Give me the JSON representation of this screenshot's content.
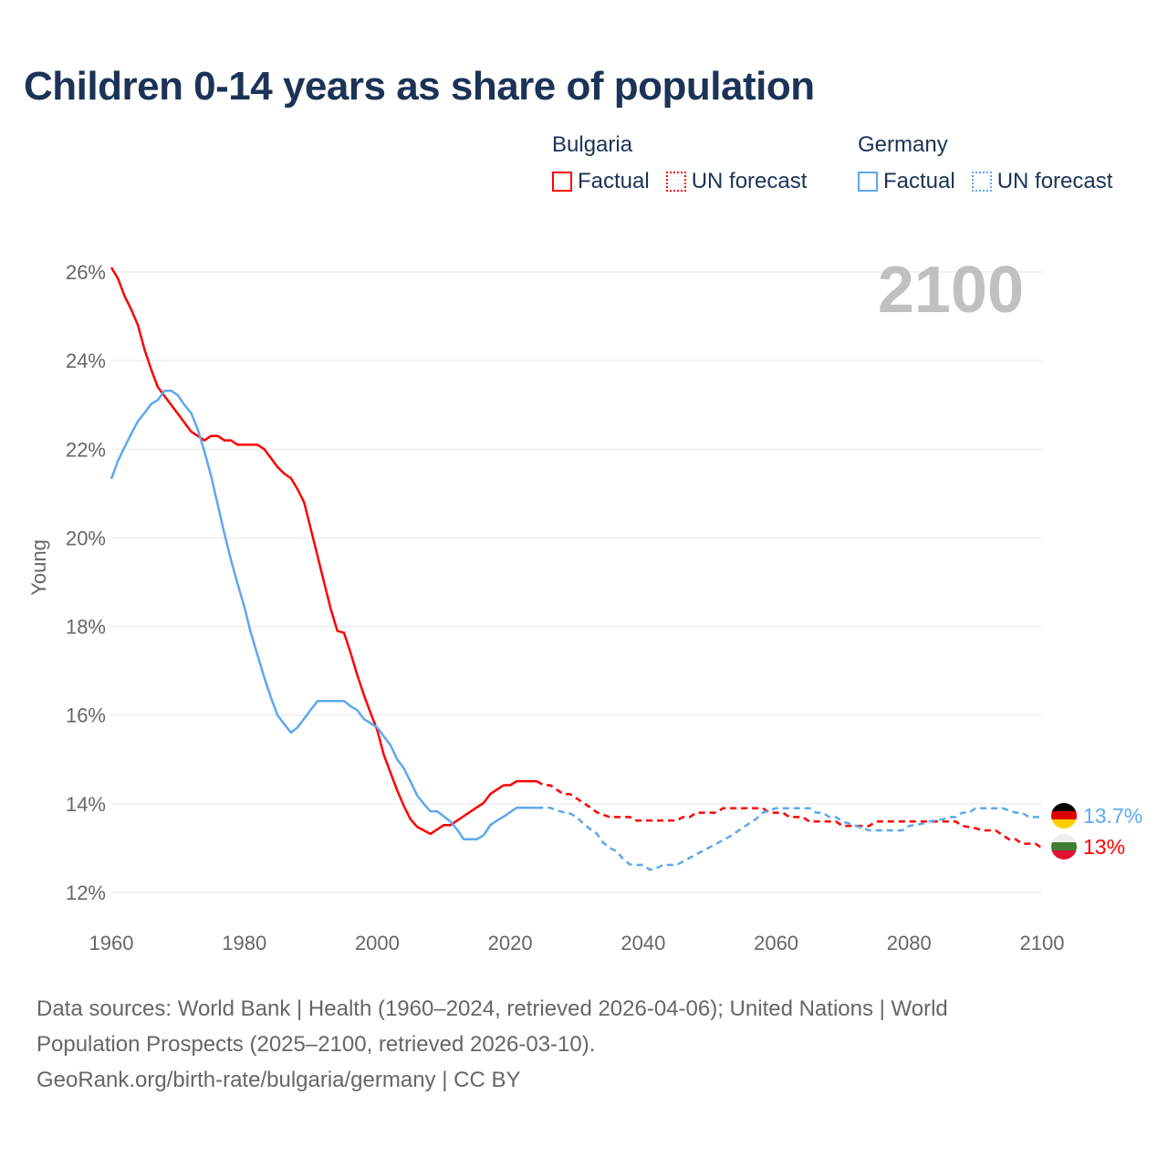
{
  "title": "Children 0-14 years as share of population",
  "legend": {
    "bulgaria": {
      "label": "Bulgaria",
      "factual": "Factual",
      "forecast": "UN forecast"
    },
    "germany": {
      "label": "Germany",
      "factual": "Factual",
      "forecast": "UN forecast"
    }
  },
  "colors": {
    "bulgaria": "#ff0000",
    "germany": "#5ea8ee",
    "title": "#1b3356",
    "year": "#c0c0c0"
  },
  "year_display": "2100",
  "end_labels": {
    "germany": "13.7%",
    "bulgaria": "13%"
  },
  "footer": {
    "line1": "Data sources: World Bank | Health (1960–2024, retrieved 2026-04-06); United Nations | World",
    "line2": "Population Prospects (2025–2100, retrieved 2026-03-10).",
    "line3": "GeoRank.org/birth-rate/bulgaria/germany | CC BY"
  },
  "chart_data": {
    "type": "line",
    "title": "Children 0-14 years as share of population",
    "xlabel": "",
    "ylabel": "Young",
    "xlim": [
      1960,
      2100
    ],
    "ylim": [
      12,
      26
    ],
    "xticks": [
      1960,
      1980,
      2000,
      2020,
      2040,
      2060,
      2080,
      2100
    ],
    "xtick_labels": [
      "1960",
      "1980",
      "2000",
      "2020",
      "2040",
      "2060",
      "2080",
      "2100"
    ],
    "yticks": [
      12,
      14,
      16,
      18,
      20,
      22,
      24,
      26
    ],
    "ytick_labels": [
      "12%",
      "14%",
      "16%",
      "18%",
      "20%",
      "22%",
      "24%",
      "26%"
    ],
    "grid": true,
    "series": [
      {
        "name": "Bulgaria Factual",
        "country": "bulgaria",
        "style": "solid",
        "points": [
          [
            1960,
            26.1
          ],
          [
            1961,
            25.85
          ],
          [
            1962,
            25.45
          ],
          [
            1963,
            25.15
          ],
          [
            1964,
            24.8
          ],
          [
            1965,
            24.25
          ],
          [
            1966,
            23.8
          ],
          [
            1967,
            23.4
          ],
          [
            1968,
            23.2
          ],
          [
            1969,
            23.0
          ],
          [
            1970,
            22.8
          ],
          [
            1971,
            22.6
          ],
          [
            1972,
            22.4
          ],
          [
            1973,
            22.3
          ],
          [
            1974,
            22.2
          ],
          [
            1975,
            22.3
          ],
          [
            1976,
            22.3
          ],
          [
            1977,
            22.2
          ],
          [
            1978,
            22.2
          ],
          [
            1979,
            22.1
          ],
          [
            1980,
            22.1
          ],
          [
            1981,
            22.1
          ],
          [
            1982,
            22.1
          ],
          [
            1983,
            22.0
          ],
          [
            1984,
            21.8
          ],
          [
            1985,
            21.6
          ],
          [
            1986,
            21.45
          ],
          [
            1987,
            21.35
          ],
          [
            1988,
            21.1
          ],
          [
            1989,
            20.8
          ],
          [
            1990,
            20.2
          ],
          [
            1991,
            19.6
          ],
          [
            1992,
            19.0
          ],
          [
            1993,
            18.4
          ],
          [
            1994,
            17.9
          ],
          [
            1995,
            17.86
          ],
          [
            1996,
            17.4
          ],
          [
            1997,
            16.9
          ],
          [
            1998,
            16.45
          ],
          [
            1999,
            16.05
          ],
          [
            2000,
            15.66
          ],
          [
            2001,
            15.1
          ],
          [
            2002,
            14.7
          ],
          [
            2003,
            14.3
          ],
          [
            2004,
            13.95
          ],
          [
            2005,
            13.65
          ],
          [
            2006,
            13.48
          ],
          [
            2007,
            13.4
          ],
          [
            2008,
            13.32
          ],
          [
            2009,
            13.42
          ],
          [
            2010,
            13.52
          ],
          [
            2011,
            13.52
          ],
          [
            2012,
            13.62
          ],
          [
            2013,
            13.72
          ],
          [
            2014,
            13.82
          ],
          [
            2015,
            13.92
          ],
          [
            2016,
            14.02
          ],
          [
            2017,
            14.22
          ],
          [
            2018,
            14.32
          ],
          [
            2019,
            14.42
          ],
          [
            2020,
            14.42
          ],
          [
            2021,
            14.51
          ],
          [
            2022,
            14.51
          ],
          [
            2023,
            14.51
          ],
          [
            2024,
            14.51
          ]
        ]
      },
      {
        "name": "Bulgaria UN forecast",
        "country": "bulgaria",
        "style": "dashed",
        "points": [
          [
            2024,
            14.51
          ],
          [
            2025,
            14.42
          ],
          [
            2026,
            14.42
          ],
          [
            2027,
            14.32
          ],
          [
            2028,
            14.22
          ],
          [
            2029,
            14.22
          ],
          [
            2030,
            14.12
          ],
          [
            2031,
            14.02
          ],
          [
            2032,
            13.92
          ],
          [
            2033,
            13.81
          ],
          [
            2034,
            13.75
          ],
          [
            2035,
            13.7
          ],
          [
            2036,
            13.7
          ],
          [
            2037,
            13.7
          ],
          [
            2038,
            13.7
          ],
          [
            2039,
            13.62
          ],
          [
            2040,
            13.62
          ],
          [
            2042,
            13.62
          ],
          [
            2044,
            13.62
          ],
          [
            2045,
            13.62
          ],
          [
            2046,
            13.7
          ],
          [
            2047,
            13.7
          ],
          [
            2048,
            13.8
          ],
          [
            2050,
            13.8
          ],
          [
            2051,
            13.8
          ],
          [
            2052,
            13.9
          ],
          [
            2054,
            13.9
          ],
          [
            2056,
            13.9
          ],
          [
            2058,
            13.9
          ],
          [
            2059,
            13.8
          ],
          [
            2061,
            13.8
          ],
          [
            2062,
            13.7
          ],
          [
            2064,
            13.7
          ],
          [
            2065,
            13.6
          ],
          [
            2067,
            13.6
          ],
          [
            2069,
            13.6
          ],
          [
            2070,
            13.5
          ],
          [
            2072,
            13.5
          ],
          [
            2074,
            13.5
          ],
          [
            2075,
            13.6
          ],
          [
            2078,
            13.6
          ],
          [
            2081,
            13.6
          ],
          [
            2084,
            13.6
          ],
          [
            2087,
            13.6
          ],
          [
            2088,
            13.5
          ],
          [
            2090,
            13.45
          ],
          [
            2091,
            13.4
          ],
          [
            2093,
            13.4
          ],
          [
            2094,
            13.3
          ],
          [
            2095,
            13.2
          ],
          [
            2096,
            13.2
          ],
          [
            2097,
            13.1
          ],
          [
            2099,
            13.1
          ],
          [
            2100,
            13.0
          ]
        ]
      },
      {
        "name": "Germany Factual",
        "country": "germany",
        "style": "solid",
        "points": [
          [
            1960,
            21.33
          ],
          [
            1961,
            21.74
          ],
          [
            1962,
            22.05
          ],
          [
            1963,
            22.35
          ],
          [
            1964,
            22.63
          ],
          [
            1965,
            22.82
          ],
          [
            1966,
            23.02
          ],
          [
            1967,
            23.11
          ],
          [
            1968,
            23.32
          ],
          [
            1969,
            23.32
          ],
          [
            1970,
            23.22
          ],
          [
            1971,
            23.0
          ],
          [
            1972,
            22.82
          ],
          [
            1973,
            22.45
          ],
          [
            1974,
            21.95
          ],
          [
            1975,
            21.4
          ],
          [
            1976,
            20.75
          ],
          [
            1977,
            20.1
          ],
          [
            1978,
            19.5
          ],
          [
            1979,
            18.96
          ],
          [
            1980,
            18.45
          ],
          [
            1981,
            17.85
          ],
          [
            1982,
            17.35
          ],
          [
            1983,
            16.85
          ],
          [
            1984,
            16.4
          ],
          [
            1985,
            16.0
          ],
          [
            1986,
            15.8
          ],
          [
            1987,
            15.61
          ],
          [
            1988,
            15.72
          ],
          [
            1989,
            15.92
          ],
          [
            1990,
            16.12
          ],
          [
            1991,
            16.32
          ],
          [
            1992,
            16.32
          ],
          [
            1993,
            16.32
          ],
          [
            1994,
            16.32
          ],
          [
            1995,
            16.32
          ],
          [
            1996,
            16.2
          ],
          [
            1997,
            16.11
          ],
          [
            1998,
            15.91
          ],
          [
            1999,
            15.82
          ],
          [
            2000,
            15.72
          ],
          [
            2001,
            15.52
          ],
          [
            2002,
            15.32
          ],
          [
            2003,
            15.0
          ],
          [
            2004,
            14.8
          ],
          [
            2005,
            14.5
          ],
          [
            2006,
            14.19
          ],
          [
            2007,
            14.0
          ],
          [
            2008,
            13.83
          ],
          [
            2009,
            13.83
          ],
          [
            2010,
            13.72
          ],
          [
            2011,
            13.6
          ],
          [
            2012,
            13.42
          ],
          [
            2013,
            13.2
          ],
          [
            2014,
            13.2
          ],
          [
            2015,
            13.2
          ],
          [
            2016,
            13.29
          ],
          [
            2017,
            13.52
          ],
          [
            2018,
            13.62
          ],
          [
            2019,
            13.71
          ],
          [
            2020,
            13.81
          ],
          [
            2021,
            13.91
          ],
          [
            2022,
            13.91
          ],
          [
            2023,
            13.91
          ],
          [
            2024,
            13.91
          ]
        ]
      },
      {
        "name": "Germany UN forecast",
        "country": "germany",
        "style": "dashed",
        "points": [
          [
            2024,
            13.91
          ],
          [
            2025,
            13.91
          ],
          [
            2026,
            13.91
          ],
          [
            2027,
            13.85
          ],
          [
            2028,
            13.81
          ],
          [
            2029,
            13.78
          ],
          [
            2030,
            13.7
          ],
          [
            2031,
            13.55
          ],
          [
            2032,
            13.43
          ],
          [
            2033,
            13.33
          ],
          [
            2034,
            13.12
          ],
          [
            2035,
            13.0
          ],
          [
            2036,
            12.93
          ],
          [
            2037,
            12.75
          ],
          [
            2038,
            12.63
          ],
          [
            2039,
            12.62
          ],
          [
            2040,
            12.62
          ],
          [
            2041,
            12.51
          ],
          [
            2042,
            12.55
          ],
          [
            2043,
            12.62
          ],
          [
            2044,
            12.62
          ],
          [
            2045,
            12.62
          ],
          [
            2046,
            12.7
          ],
          [
            2047,
            12.78
          ],
          [
            2048,
            12.86
          ],
          [
            2049,
            12.94
          ],
          [
            2050,
            13.02
          ],
          [
            2051,
            13.1
          ],
          [
            2052,
            13.18
          ],
          [
            2053,
            13.26
          ],
          [
            2054,
            13.36
          ],
          [
            2055,
            13.46
          ],
          [
            2056,
            13.56
          ],
          [
            2057,
            13.66
          ],
          [
            2058,
            13.8
          ],
          [
            2059,
            13.85
          ],
          [
            2060,
            13.9
          ],
          [
            2062,
            13.9
          ],
          [
            2064,
            13.9
          ],
          [
            2065,
            13.9
          ],
          [
            2066,
            13.8
          ],
          [
            2067,
            13.8
          ],
          [
            2068,
            13.7
          ],
          [
            2069,
            13.7
          ],
          [
            2070,
            13.6
          ],
          [
            2071,
            13.55
          ],
          [
            2072,
            13.5
          ],
          [
            2073,
            13.45
          ],
          [
            2074,
            13.4
          ],
          [
            2076,
            13.4
          ],
          [
            2078,
            13.4
          ],
          [
            2079,
            13.4
          ],
          [
            2080,
            13.5
          ],
          [
            2082,
            13.55
          ],
          [
            2083,
            13.6
          ],
          [
            2085,
            13.65
          ],
          [
            2086,
            13.7
          ],
          [
            2087,
            13.7
          ],
          [
            2088,
            13.8
          ],
          [
            2089,
            13.8
          ],
          [
            2090,
            13.9
          ],
          [
            2092,
            13.9
          ],
          [
            2094,
            13.9
          ],
          [
            2095,
            13.85
          ],
          [
            2096,
            13.8
          ],
          [
            2097,
            13.8
          ],
          [
            2098,
            13.7
          ],
          [
            2100,
            13.7
          ]
        ]
      }
    ]
  }
}
